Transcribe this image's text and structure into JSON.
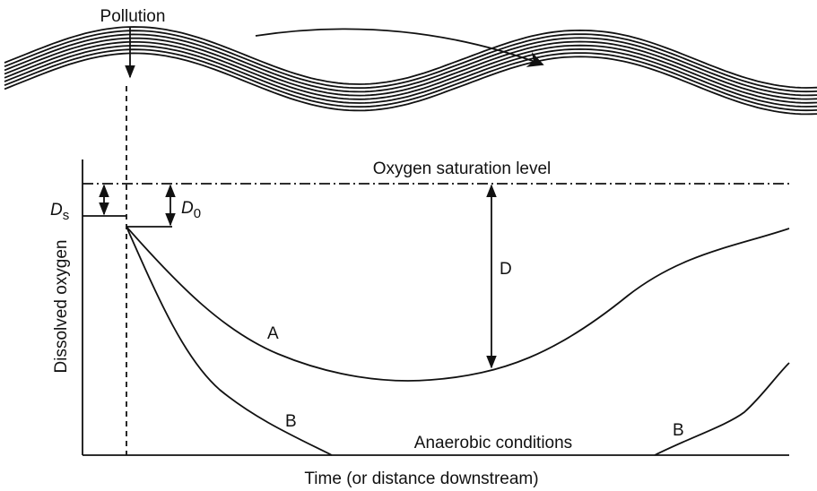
{
  "labels": {
    "pollution": "Pollution",
    "saturation": "Oxygen saturation level",
    "ds": {
      "main": "D",
      "sub": "s"
    },
    "d0": {
      "main": "D",
      "sub": "0"
    },
    "deficit": "D",
    "curve_a": "A",
    "curve_b": [
      "B",
      "B"
    ],
    "anaerobic": "Anaerobic conditions",
    "y_axis": "Dissolved oxygen",
    "x_axis": "Time (or distance downstream)"
  }
}
